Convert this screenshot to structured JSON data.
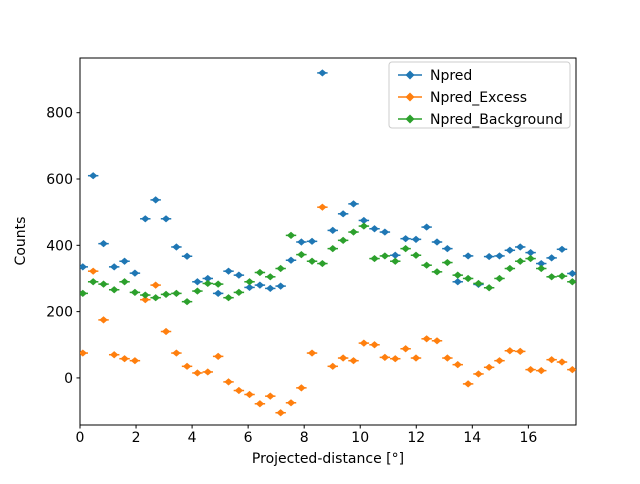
{
  "figure": {
    "background": "#ffffff"
  },
  "axes": {
    "xlabel": "Projected-distance [°]",
    "ylabel": "Counts",
    "x_ticks": [
      0,
      2,
      4,
      6,
      8,
      10,
      12,
      14,
      16
    ],
    "y_ticks": [
      0,
      200,
      400,
      600,
      800
    ],
    "xlim": [
      0,
      17.7
    ],
    "ylim": [
      -142,
      965
    ],
    "spine_color": "#000000"
  },
  "legend": {
    "items": [
      {
        "label": "Npred",
        "color": "#1f77b4"
      },
      {
        "label": "Npred_Excess",
        "color": "#ff7f0e"
      },
      {
        "label": "Npred_Background",
        "color": "#2ca02c"
      }
    ],
    "position": "upper-right",
    "border_color": "#cccccc"
  },
  "chart_data": {
    "type": "scatter",
    "marker": "diamond-with-xerr",
    "xerr": 0.186,
    "title": "",
    "xlabel": "Projected-distance [°]",
    "ylabel": "Counts",
    "xlim": [
      0,
      17.7
    ],
    "ylim": [
      -142,
      965
    ],
    "grid": false,
    "legend_position": "upper right",
    "x": [
      0.1,
      0.47,
      0.84,
      1.22,
      1.59,
      1.96,
      2.33,
      2.7,
      3.07,
      3.44,
      3.82,
      4.19,
      4.56,
      4.93,
      5.3,
      5.67,
      6.05,
      6.42,
      6.79,
      7.16,
      7.53,
      7.9,
      8.28,
      8.65,
      9.02,
      9.39,
      9.76,
      10.13,
      10.51,
      10.88,
      11.25,
      11.62,
      11.99,
      12.37,
      12.74,
      13.11,
      13.48,
      13.85,
      14.22,
      14.6,
      14.97,
      15.34,
      15.71,
      16.08,
      16.46,
      16.83,
      17.2,
      17.57
    ],
    "series": [
      {
        "name": "Npred",
        "color": "#1f77b4",
        "values": [
          335,
          610,
          405,
          335,
          352,
          316,
          480,
          537,
          480,
          395,
          367,
          290,
          300,
          255,
          322,
          310,
          273,
          280,
          270,
          277,
          355,
          410,
          412,
          920,
          445,
          495,
          525,
          475,
          450,
          440,
          370,
          420,
          418,
          455,
          410,
          390,
          290,
          368,
          282,
          366,
          368,
          385,
          395,
          378,
          345,
          362,
          388,
          315
        ]
      },
      {
        "name": "Npred_Excess",
        "color": "#ff7f0e",
        "values": [
          75,
          322,
          175,
          70,
          58,
          52,
          236,
          280,
          140,
          75,
          35,
          15,
          18,
          65,
          -12,
          -38,
          -50,
          -78,
          -55,
          -105,
          -75,
          -30,
          75,
          515,
          35,
          60,
          52,
          105,
          100,
          62,
          58,
          88,
          60,
          118,
          112,
          60,
          40,
          -18,
          12,
          32,
          52,
          82,
          80,
          25,
          22,
          55,
          48,
          25
        ]
      },
      {
        "name": "Npred_Background",
        "color": "#2ca02c",
        "values": [
          255,
          290,
          283,
          266,
          290,
          258,
          250,
          242,
          252,
          255,
          230,
          262,
          285,
          283,
          242,
          258,
          290,
          318,
          305,
          330,
          430,
          372,
          352,
          345,
          390,
          415,
          440,
          458,
          360,
          368,
          352,
          390,
          370,
          340,
          320,
          348,
          310,
          300,
          285,
          272,
          300,
          330,
          352,
          360,
          330,
          305,
          307,
          290
        ]
      }
    ]
  }
}
